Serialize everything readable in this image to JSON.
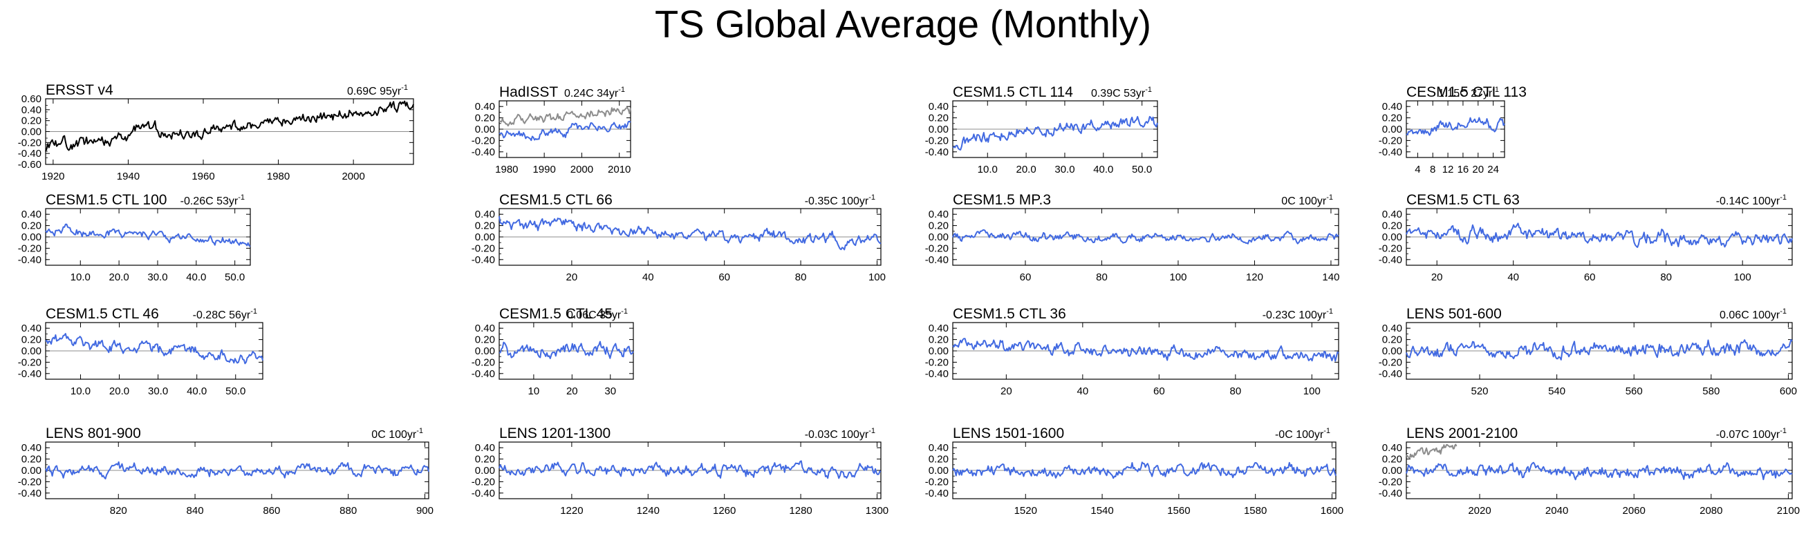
{
  "title": "TS Global Average (Monthly)",
  "colors": {
    "observed": "#000000",
    "model": "#4169e1",
    "reference": "#8c8c8c",
    "zero_line": "#8c8c8c"
  },
  "chart_data": [
    {
      "type": "line",
      "title": "ERSST v4",
      "trend_value": "0.69C 95yr",
      "trend_exp": "-1",
      "xlim": [
        1918,
        2016
      ],
      "xticks": [
        1920,
        1940,
        1960,
        1980,
        2000
      ],
      "ylim": [
        -0.6,
        0.6
      ],
      "yticks": [
        "0.60",
        "0.40",
        "0.20",
        "0.00",
        "-0.20",
        "-0.40",
        "-0.60"
      ],
      "series": [
        {
          "name": "ERSST v4",
          "color": "observed",
          "start": -0.3,
          "end": 0.45,
          "amp": 0.07,
          "bump": 0.22,
          "seed": 11
        }
      ]
    },
    {
      "type": "line",
      "title": "HadISST",
      "trend_value": "0.24C 34yr",
      "trend_exp": "-1",
      "xlim": [
        1978,
        2013
      ],
      "xticks": [
        1980,
        1990,
        2000,
        2010
      ],
      "ylim": [
        -0.5,
        0.5
      ],
      "yticks": [
        "0.40",
        "0.20",
        "0.00",
        "-0.20",
        "-0.40"
      ],
      "series": [
        {
          "name": "HadISST",
          "color": "reference",
          "start": 0.1,
          "end": 0.38,
          "amp": 0.06,
          "seed": 21
        },
        {
          "name": "CESM",
          "color": "model",
          "start": -0.15,
          "end": 0.08,
          "amp": 0.06,
          "seed": 22
        }
      ]
    },
    {
      "type": "line",
      "title": "CESM1.5 CTL 114",
      "trend_value": "0.39C 53yr",
      "trend_exp": "-1",
      "xlim": [
        1,
        54
      ],
      "xticks": [
        10.0,
        20.0,
        30.0,
        40.0,
        50.0
      ],
      "ylim": [
        -0.5,
        0.5
      ],
      "yticks": [
        "0.40",
        "0.20",
        "0.00",
        "-0.20",
        "-0.40"
      ],
      "series": [
        {
          "name": "CTL 114",
          "color": "model",
          "start": -0.35,
          "end": 0.15,
          "amp": 0.07,
          "seed": 31,
          "curve": 0.5
        }
      ]
    },
    {
      "type": "line",
      "title": "CESM1.5 CTL 113",
      "trend_value": "1.15C 27yr",
      "trend_exp": "-1",
      "xlim": [
        1,
        27
      ],
      "xticks": [
        4,
        8,
        12,
        16,
        20,
        24
      ],
      "ylim": [
        -0.5,
        0.5
      ],
      "yticks": [
        "0.40",
        "0.20",
        "0.00",
        "-0.20",
        "-0.40"
      ],
      "series": [
        {
          "name": "CTL 113",
          "color": "model",
          "start": -0.05,
          "end": 0.1,
          "amp": 0.07,
          "seed": 41
        }
      ]
    },
    {
      "type": "line",
      "title": "CESM1.5 CTL 100",
      "trend_value": "-0.26C 53yr",
      "trend_exp": "-1",
      "xlim": [
        1,
        54
      ],
      "xticks": [
        10.0,
        20.0,
        30.0,
        40.0,
        50.0
      ],
      "ylim": [
        -0.5,
        0.5
      ],
      "yticks": [
        "0.40",
        "0.20",
        "0.00",
        "-0.20",
        "-0.40"
      ],
      "series": [
        {
          "name": "CTL 100",
          "color": "model",
          "start": 0.15,
          "end": -0.1,
          "amp": 0.05,
          "seed": 51
        }
      ]
    },
    {
      "type": "line",
      "title": "CESM1.5 CTL 66",
      "trend_value": "-0.35C 100yr",
      "trend_exp": "-1",
      "xlim": [
        1,
        101
      ],
      "xticks": [
        20,
        40,
        60,
        80,
        100
      ],
      "ylim": [
        -0.5,
        0.5
      ],
      "yticks": [
        "0.40",
        "0.20",
        "0.00",
        "-0.20",
        "-0.40"
      ],
      "series": [
        {
          "name": "CTL 66",
          "color": "model",
          "start": 0.3,
          "end": -0.08,
          "amp": 0.07,
          "seed": 61,
          "curve": 0.6
        }
      ]
    },
    {
      "type": "line",
      "title": "CESM1.5 MP.3",
      "trend_value": "0C 100yr",
      "trend_exp": "-1",
      "xlim": [
        41,
        142
      ],
      "xticks": [
        60,
        80,
        100,
        120,
        140
      ],
      "ylim": [
        -0.5,
        0.5
      ],
      "yticks": [
        "0.40",
        "0.20",
        "0.00",
        "-0.20",
        "-0.40"
      ],
      "series": [
        {
          "name": "MP.3",
          "color": "model",
          "start": 0.0,
          "end": 0.0,
          "amp": 0.05,
          "seed": 71
        }
      ]
    },
    {
      "type": "line",
      "title": "CESM1.5 CTL 63",
      "trend_value": "-0.14C 100yr",
      "trend_exp": "-1",
      "xlim": [
        12,
        113
      ],
      "xticks": [
        20,
        40,
        60,
        80,
        100
      ],
      "ylim": [
        -0.5,
        0.5
      ],
      "yticks": [
        "0.40",
        "0.20",
        "0.00",
        "-0.20",
        "-0.40"
      ],
      "series": [
        {
          "name": "CTL 63",
          "color": "model",
          "start": 0.08,
          "end": -0.08,
          "amp": 0.08,
          "seed": 81
        }
      ]
    },
    {
      "type": "line",
      "title": "CESM1.5 CTL 46",
      "trend_value": "-0.28C 56yr",
      "trend_exp": "-1",
      "xlim": [
        1,
        57
      ],
      "xticks": [
        10.0,
        20.0,
        30.0,
        40.0,
        50.0
      ],
      "ylim": [
        -0.5,
        0.5
      ],
      "yticks": [
        "0.40",
        "0.20",
        "0.00",
        "-0.20",
        "-0.40"
      ],
      "series": [
        {
          "name": "CTL 46",
          "color": "model",
          "start": 0.22,
          "end": -0.15,
          "amp": 0.07,
          "seed": 91
        }
      ]
    },
    {
      "type": "line",
      "title": "CESM1.5 CTL 45",
      "trend_value": "0.06C 35yr",
      "trend_exp": "-1",
      "xlim": [
        1,
        36
      ],
      "xticks": [
        10.0,
        20.0,
        30.0
      ],
      "ylim": [
        -0.5,
        0.5
      ],
      "yticks": [
        "0.40",
        "0.20",
        "0.00",
        "-0.20",
        "-0.40"
      ],
      "series": [
        {
          "name": "CTL 45",
          "color": "model",
          "start": -0.05,
          "end": 0.05,
          "amp": 0.08,
          "seed": 101
        }
      ]
    },
    {
      "type": "line",
      "title": "CESM1.5 CTL 36",
      "trend_value": "-0.23C 100yr",
      "trend_exp": "-1",
      "xlim": [
        6,
        107
      ],
      "xticks": [
        20,
        40,
        60,
        80,
        100
      ],
      "ylim": [
        -0.5,
        0.5
      ],
      "yticks": [
        "0.40",
        "0.20",
        "0.00",
        "-0.20",
        "-0.40"
      ],
      "series": [
        {
          "name": "CTL 36",
          "color": "model",
          "start": 0.1,
          "end": -0.1,
          "amp": 0.07,
          "seed": 111
        }
      ]
    },
    {
      "type": "line",
      "title": "LENS 501-600",
      "trend_value": "0.06C 100yr",
      "trend_exp": "-1",
      "xlim": [
        501,
        601
      ],
      "xticks": [
        520,
        540,
        560,
        580,
        600
      ],
      "ylim": [
        -0.5,
        0.5
      ],
      "yticks": [
        "0.40",
        "0.20",
        "0.00",
        "-0.20",
        "-0.40"
      ],
      "series": [
        {
          "name": "LENS 501-600",
          "color": "model",
          "start": 0.0,
          "end": 0.05,
          "amp": 0.08,
          "seed": 121
        }
      ]
    },
    {
      "type": "line",
      "title": "LENS 801-900",
      "trend_value": "0C 100yr",
      "trend_exp": "-1",
      "xlim": [
        801,
        901
      ],
      "xticks": [
        820,
        840,
        860,
        880,
        900
      ],
      "ylim": [
        -0.5,
        0.5
      ],
      "yticks": [
        "0.40",
        "0.20",
        "0.00",
        "-0.20",
        "-0.40"
      ],
      "series": [
        {
          "name": "LENS 801-900",
          "color": "model",
          "start": 0.0,
          "end": 0.0,
          "amp": 0.06,
          "seed": 131
        }
      ]
    },
    {
      "type": "line",
      "title": "LENS 1201-1300",
      "trend_value": "-0.03C 100yr",
      "trend_exp": "-1",
      "xlim": [
        1201,
        1301
      ],
      "xticks": [
        1220,
        1240,
        1260,
        1280,
        1300
      ],
      "ylim": [
        -0.5,
        0.5
      ],
      "yticks": [
        "0.40",
        "0.20",
        "0.00",
        "-0.20",
        "-0.40"
      ],
      "series": [
        {
          "name": "LENS 1201-1300",
          "color": "model",
          "start": 0.02,
          "end": 0.0,
          "amp": 0.07,
          "seed": 141
        }
      ]
    },
    {
      "type": "line",
      "title": "LENS 1501-1600",
      "trend_value": "-0C 100yr",
      "trend_exp": "-1",
      "xlim": [
        1501,
        1601
      ],
      "xticks": [
        1520,
        1540,
        1560,
        1580,
        1600
      ],
      "ylim": [
        -0.5,
        0.5
      ],
      "yticks": [
        "0.40",
        "0.20",
        "0.00",
        "-0.20",
        "-0.40"
      ],
      "series": [
        {
          "name": "LENS 1501-1600",
          "color": "model",
          "start": 0.0,
          "end": 0.0,
          "amp": 0.07,
          "seed": 151
        }
      ]
    },
    {
      "type": "line",
      "title": "LENS 2001-2100",
      "trend_value": "-0.07C 100yr",
      "trend_exp": "-1",
      "xlim": [
        2001,
        2101
      ],
      "xticks": [
        2020,
        2040,
        2060,
        2080,
        2100
      ],
      "ylim": [
        -0.5,
        0.5
      ],
      "yticks": [
        "0.40",
        "0.20",
        "0.00",
        "-0.20",
        "-0.40"
      ],
      "series": [
        {
          "name": "LENS 2001-2100",
          "color": "model",
          "start": 0.02,
          "end": -0.05,
          "amp": 0.07,
          "seed": 161
        },
        {
          "name": "HadISST overlay",
          "color": "reference",
          "start": 0.28,
          "end": 0.42,
          "amp": 0.05,
          "seed": 162,
          "xrange": [
            2001,
            2014
          ]
        }
      ]
    }
  ]
}
